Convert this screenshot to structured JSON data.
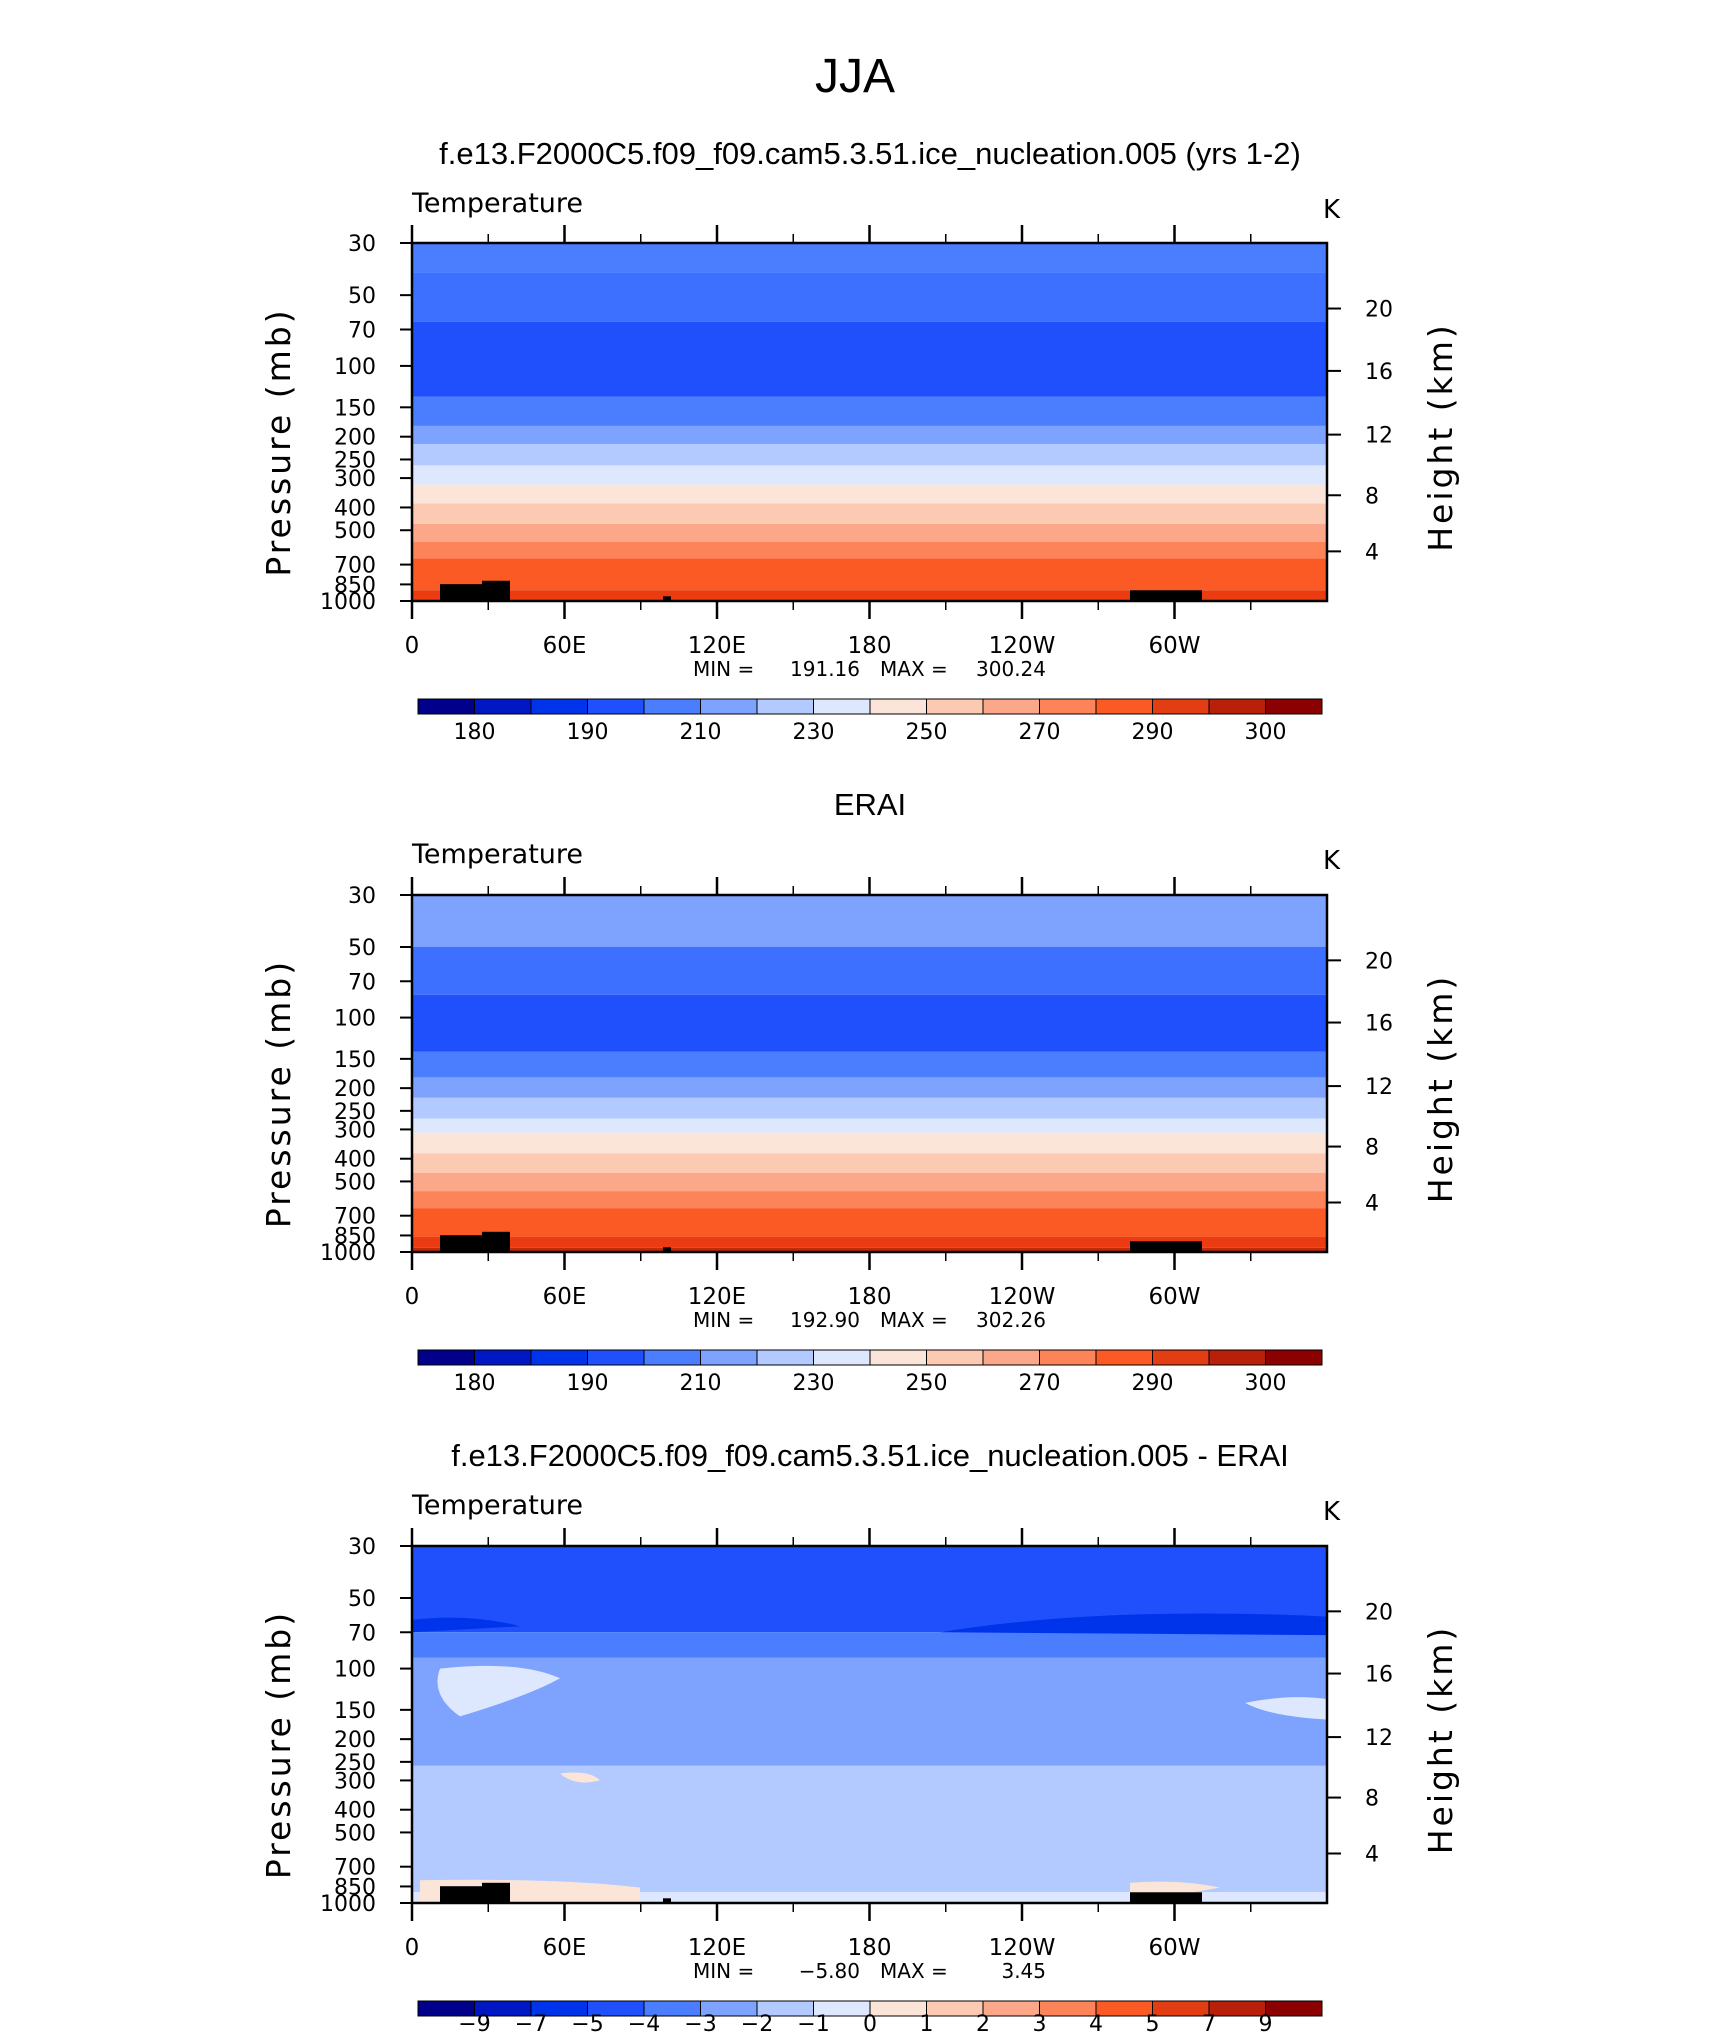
{
  "page_title": "JJA",
  "chart_data": [
    {
      "type": "heatmap",
      "title": "f.e13.F2000C5.f09_f09.cam5.3.51.ice_nucleation.005 (yrs 1-2)",
      "variable": "Temperature",
      "units": "K",
      "ylabel_left": "Pressure (mb)",
      "ylabel_right": "Height (km)",
      "x_ticks": [
        "0",
        "60E",
        "120E",
        "180",
        "120W",
        "60W"
      ],
      "y_ticks_left": [
        "30",
        "50",
        "70",
        "100",
        "150",
        "200",
        "250",
        "300",
        "400",
        "500",
        "700",
        "850",
        "1000"
      ],
      "y_ticks_right": [
        "20",
        "16",
        "12",
        "8",
        "4"
      ],
      "stats": {
        "min_label": "MIN =",
        "min": "191.16",
        "max_label": "MAX =",
        "max": "300.24"
      },
      "colorbar_labels": [
        "180",
        "190",
        "210",
        "230",
        "250",
        "270",
        "290",
        "300"
      ],
      "bands": [
        {
          "p_top": 30,
          "p_bottom": 40,
          "color": "#4b7eff"
        },
        {
          "p_top": 40,
          "p_bottom": 65,
          "color": "#3d70ff"
        },
        {
          "p_top": 65,
          "p_bottom": 135,
          "color": "#1f50fb"
        },
        {
          "p_top": 135,
          "p_bottom": 180,
          "color": "#4b7eff"
        },
        {
          "p_top": 180,
          "p_bottom": 215,
          "color": "#7da3ff"
        },
        {
          "p_top": 215,
          "p_bottom": 265,
          "color": "#b2caff"
        },
        {
          "p_top": 265,
          "p_bottom": 320,
          "color": "#dde8ff"
        },
        {
          "p_top": 320,
          "p_bottom": 385,
          "color": "#fbe5d8"
        },
        {
          "p_top": 385,
          "p_bottom": 470,
          "color": "#fcc9b2"
        },
        {
          "p_top": 470,
          "p_bottom": 560,
          "color": "#fba88a"
        },
        {
          "p_top": 560,
          "p_bottom": 660,
          "color": "#fc8458"
        },
        {
          "p_top": 660,
          "p_bottom": 900,
          "color": "#fc5a24"
        },
        {
          "p_top": 900,
          "p_bottom": 1000,
          "color": "#ea3c10"
        }
      ]
    },
    {
      "type": "heatmap",
      "title": "ERAI",
      "variable": "Temperature",
      "units": "K",
      "ylabel_left": "Pressure (mb)",
      "ylabel_right": "Height (km)",
      "x_ticks": [
        "0",
        "60E",
        "120E",
        "180",
        "120W",
        "60W"
      ],
      "y_ticks_left": [
        "30",
        "50",
        "70",
        "100",
        "150",
        "200",
        "250",
        "300",
        "400",
        "500",
        "700",
        "850",
        "1000"
      ],
      "y_ticks_right": [
        "20",
        "16",
        "12",
        "8",
        "4"
      ],
      "stats": {
        "min_label": "MIN =",
        "min": "192.90",
        "max_label": "MAX =",
        "max": "302.26"
      },
      "colorbar_labels": [
        "180",
        "190",
        "210",
        "230",
        "250",
        "270",
        "290",
        "300"
      ],
      "bands": [
        {
          "p_top": 30,
          "p_bottom": 50,
          "color": "#7da3ff"
        },
        {
          "p_top": 50,
          "p_bottom": 80,
          "color": "#3d70ff"
        },
        {
          "p_top": 80,
          "p_bottom": 140,
          "color": "#1f50fb"
        },
        {
          "p_top": 140,
          "p_bottom": 180,
          "color": "#4b7eff"
        },
        {
          "p_top": 180,
          "p_bottom": 220,
          "color": "#7da3ff"
        },
        {
          "p_top": 220,
          "p_bottom": 270,
          "color": "#b2caff"
        },
        {
          "p_top": 270,
          "p_bottom": 310,
          "color": "#dde8ff"
        },
        {
          "p_top": 310,
          "p_bottom": 380,
          "color": "#fbe5d8"
        },
        {
          "p_top": 380,
          "p_bottom": 460,
          "color": "#fcc9b2"
        },
        {
          "p_top": 460,
          "p_bottom": 550,
          "color": "#fba88a"
        },
        {
          "p_top": 550,
          "p_bottom": 650,
          "color": "#fc8458"
        },
        {
          "p_top": 650,
          "p_bottom": 860,
          "color": "#fc5a24"
        },
        {
          "p_top": 860,
          "p_bottom": 960,
          "color": "#ea3c10"
        },
        {
          "p_top": 960,
          "p_bottom": 1000,
          "color": "#c42a08"
        }
      ]
    },
    {
      "type": "heatmap",
      "title": "f.e13.F2000C5.f09_f09.cam5.3.51.ice_nucleation.005 - ERAI",
      "variable": "Temperature",
      "units": "K",
      "ylabel_left": "Pressure (mb)",
      "ylabel_right": "Height (km)",
      "x_ticks": [
        "0",
        "60E",
        "120E",
        "180",
        "120W",
        "60W"
      ],
      "y_ticks_left": [
        "30",
        "50",
        "70",
        "100",
        "150",
        "200",
        "250",
        "300",
        "400",
        "500",
        "700",
        "850",
        "1000"
      ],
      "y_ticks_right": [
        "20",
        "16",
        "12",
        "8",
        "4"
      ],
      "stats": {
        "min_label": "MIN =",
        "min": "−5.80",
        "max_label": "MAX =",
        "max": "3.45"
      },
      "colorbar_labels": [
        "−9",
        "−7",
        "−5",
        "−4",
        "−3",
        "−2",
        "−1",
        "0",
        "1",
        "2",
        "3",
        "4",
        "5",
        "7",
        "9"
      ],
      "bands": [
        {
          "p_top": 30,
          "p_bottom": 70,
          "color": "#1f50fb"
        },
        {
          "p_top": 70,
          "p_bottom": 90,
          "color": "#4b7eff"
        },
        {
          "p_top": 90,
          "p_bottom": 260,
          "color": "#7da3ff"
        },
        {
          "p_top": 260,
          "p_bottom": 900,
          "color": "#b2caff"
        },
        {
          "p_top": 900,
          "p_bottom": 1000,
          "color": "#dde8ff"
        }
      ]
    }
  ],
  "colorbar_colors": [
    "#00008a",
    "#0018c4",
    "#0034eb",
    "#1f50fb",
    "#4b7eff",
    "#7da3ff",
    "#b2caff",
    "#dde8ff",
    "#fbe5d8",
    "#fcc9b2",
    "#fba88a",
    "#fc8458",
    "#fc5a24",
    "#e33d14",
    "#b8200a",
    "#8b0000"
  ]
}
